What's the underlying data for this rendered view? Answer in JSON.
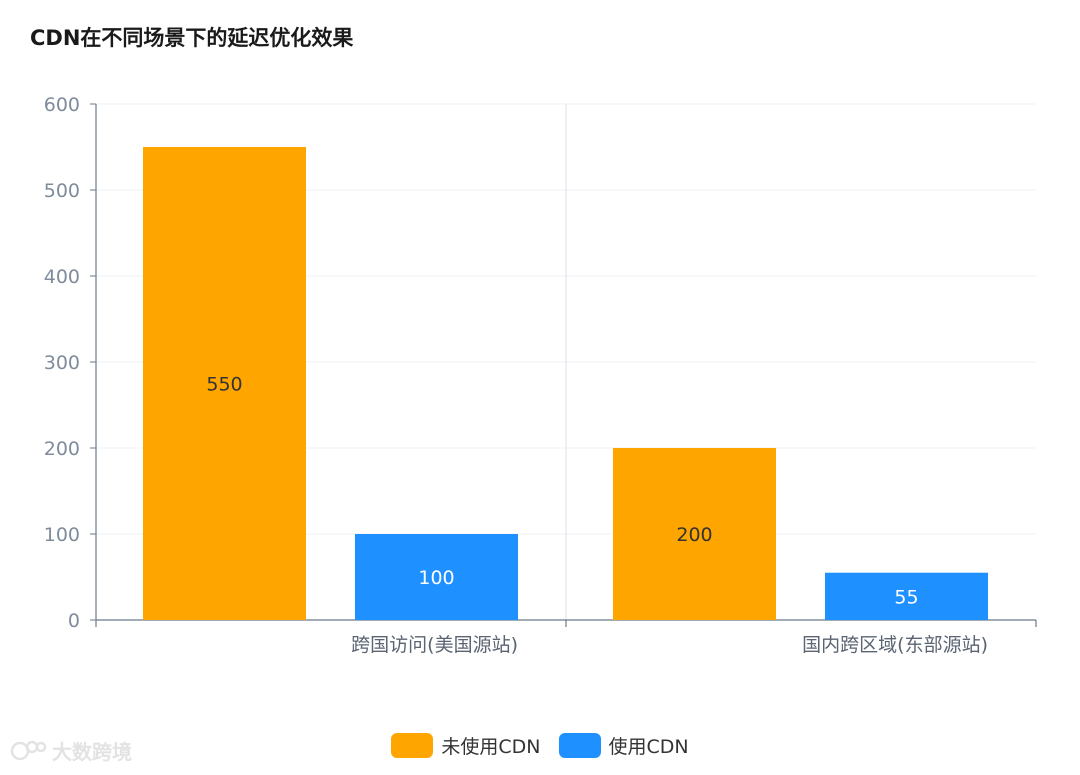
{
  "title": "CDN在不同场景下的延迟优化效果",
  "chart_data": {
    "type": "bar",
    "categories": [
      "跨国访问(美国源站)",
      "国内跨区域(东部源站)"
    ],
    "series": [
      {
        "name": "未使用CDN",
        "color": "#FFA500",
        "values": [
          550,
          200
        ]
      },
      {
        "name": "使用CDN",
        "color": "#1E90FF",
        "values": [
          100,
          55
        ]
      }
    ],
    "ylim": [
      0,
      600
    ],
    "yticks": [
      0,
      100,
      200,
      300,
      400,
      500,
      600
    ],
    "grid": true,
    "data_labels": true,
    "legend_position": "bottom-center"
  },
  "watermark": {
    "text": "大数跨境"
  }
}
